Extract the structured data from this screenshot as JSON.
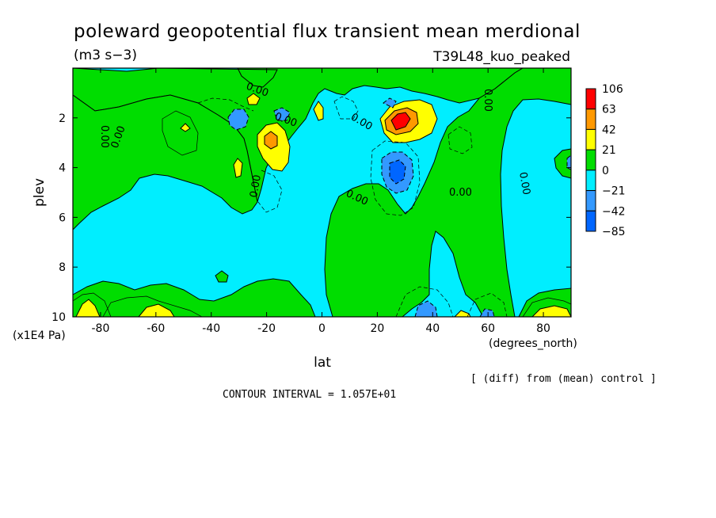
{
  "chart_data": {
    "type": "heatmap",
    "title": "poleward geopotential flux transient mean merdional",
    "subtitle": "(m3 s−3)",
    "run_label": "T39L48_kuo_peaked",
    "xlabel": "lat",
    "x_units": "(degrees_north)",
    "ylabel": "plev",
    "y_units": "(x1E4 Pa)",
    "xlim": [
      -90,
      90
    ],
    "ylim": [
      0,
      10
    ],
    "y_inverted": true,
    "x_ticks": [
      "-80",
      "-60",
      "-40",
      "-20",
      "0",
      "20",
      "40",
      "60",
      "80"
    ],
    "x_tick_values": [
      -80,
      -60,
      -40,
      -20,
      0,
      20,
      40,
      60,
      80
    ],
    "y_ticks": [
      "2",
      "4",
      "6",
      "8",
      "10"
    ],
    "y_tick_values": [
      2,
      4,
      6,
      8,
      10
    ],
    "legend": {
      "placement": "right",
      "labels": [
        "106",
        "63",
        "42",
        "21",
        "0",
        "−21",
        "−42",
        "−85"
      ],
      "colors": [
        "#ff0000",
        "#ff9900",
        "#ffff00",
        "#00dd00",
        "#00eeff",
        "#3399ff",
        "#0066ff"
      ]
    },
    "levels": [
      -85,
      -42,
      -21,
      0,
      21,
      42,
      63,
      106
    ],
    "contour_labels": [
      "0.00",
      "0.00",
      "0.00",
      "0.00",
      "0.00",
      "0.00",
      "0.00",
      "0.00",
      "0.00",
      "0.00"
    ],
    "features": [
      {
        "kind": "max",
        "lat": 27,
        "plev": 2.3,
        "value": 106
      },
      {
        "kind": "max",
        "lat": -18,
        "plev": 2.9,
        "value": 45
      },
      {
        "kind": "max",
        "lat": 32,
        "plev": 1.8,
        "value": 35
      },
      {
        "kind": "min",
        "lat": 30,
        "plev": 4.3,
        "value": -45
      },
      {
        "kind": "min",
        "lat": -30,
        "plev": 2.1,
        "value": -40
      },
      {
        "kind": "min",
        "lat": -15,
        "plev": 2.0,
        "value": -30
      },
      {
        "kind": "min",
        "lat": 36,
        "plev": 9.9,
        "value": -40
      },
      {
        "kind": "max",
        "lat": -83,
        "plev": 9.9,
        "value": 30
      },
      {
        "kind": "max",
        "lat": -58,
        "plev": 9.9,
        "value": 25
      },
      {
        "kind": "max",
        "lat": 85,
        "plev": 9.9,
        "value": 30
      }
    ]
  },
  "footer": {
    "diff_note": "[ (diff) from (mean) control ]",
    "contour_interval": "CONTOUR INTERVAL = 1.057E+01"
  }
}
